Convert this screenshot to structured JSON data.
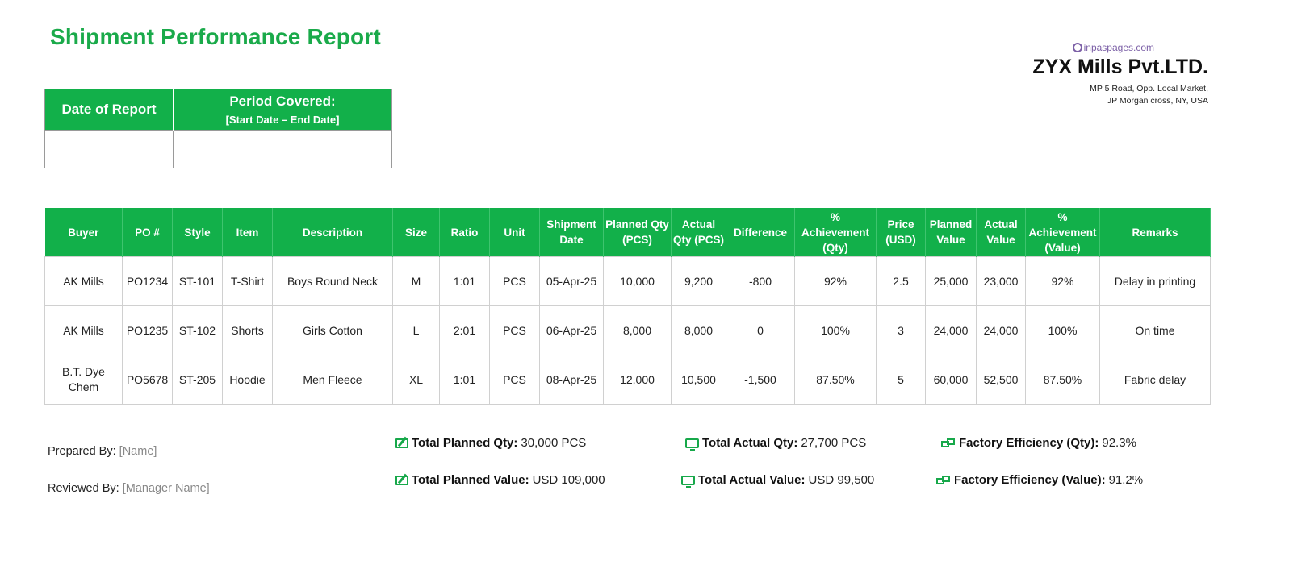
{
  "title": "Shipment Performance Report",
  "info": {
    "date_label": "Date of Report",
    "period_label": "Period Covered:",
    "period_sub": "[Start Date – End Date]",
    "date_value": "",
    "period_value": ""
  },
  "company": {
    "watermark": "inpaspages.com",
    "name": "ZYX Mills Pvt.LTD.",
    "address_line1": "MP 5 Road, Opp. Local Market,",
    "address_line2": "JP Morgan cross, NY, USA"
  },
  "table": {
    "headers": [
      "Buyer",
      "PO #",
      "Style",
      "Item",
      "Description",
      "Size",
      "Ratio",
      "Unit",
      "Shipment Date",
      "Planned Qty (PCS)",
      "Actual Qty (PCS)",
      "Difference",
      "% Achievement (Qty)",
      "Price (USD)",
      "Planned Value",
      "Actual Value",
      "% Achievement (Value)",
      "Remarks"
    ],
    "rows": [
      [
        "AK Mills",
        "PO1234",
        "ST-101",
        "T-Shirt",
        "Boys Round Neck",
        "M",
        "1:01",
        "PCS",
        "05-Apr-25",
        "10,000",
        "9,200",
        "-800",
        "92%",
        "2.5",
        "25,000",
        "23,000",
        "92%",
        "Delay in printing"
      ],
      [
        "AK Mills",
        "PO1235",
        "ST-102",
        "Shorts",
        "Girls Cotton",
        "L",
        "2:01",
        "PCS",
        "06-Apr-25",
        "8,000",
        "8,000",
        "0",
        "100%",
        "3",
        "24,000",
        "24,000",
        "100%",
        "On time"
      ],
      [
        "B.T. Dye Chem",
        "PO5678",
        "ST-205",
        "Hoodie",
        "Men Fleece",
        "XL",
        "1:01",
        "PCS",
        "08-Apr-25",
        "12,000",
        "10,500",
        "-1,500",
        "87.50%",
        "5",
        "60,000",
        "52,500",
        "87.50%",
        "Fabric delay"
      ]
    ]
  },
  "footer": {
    "prepared_label": "Prepared By:",
    "prepared_value": "[Name]",
    "reviewed_label": "Reviewed By:",
    "reviewed_value": "[Manager Name]"
  },
  "summary": {
    "total_planned_qty_label": "Total Planned Qty:",
    "total_planned_qty_value": "30,000 PCS",
    "total_planned_value_label": "Total Planned Value:",
    "total_planned_value_value": "USD 109,000",
    "total_actual_qty_label": "Total Actual Qty:",
    "total_actual_qty_value": "27,700 PCS",
    "total_actual_value_label": "Total Actual Value:",
    "total_actual_value_value": "USD 99,500",
    "eff_qty_label": "Factory Efficiency (Qty):",
    "eff_qty_value": "92.3%",
    "eff_value_label": "Factory Efficiency (Value):",
    "eff_value_value": "91.2%"
  },
  "icons": {
    "planned": "edit-pencil-icon",
    "actual": "monitor-icon",
    "efficiency": "money-icon"
  },
  "colors": {
    "accent": "#12b04a",
    "title": "#1aaa4a",
    "placeholder": "#888888"
  }
}
